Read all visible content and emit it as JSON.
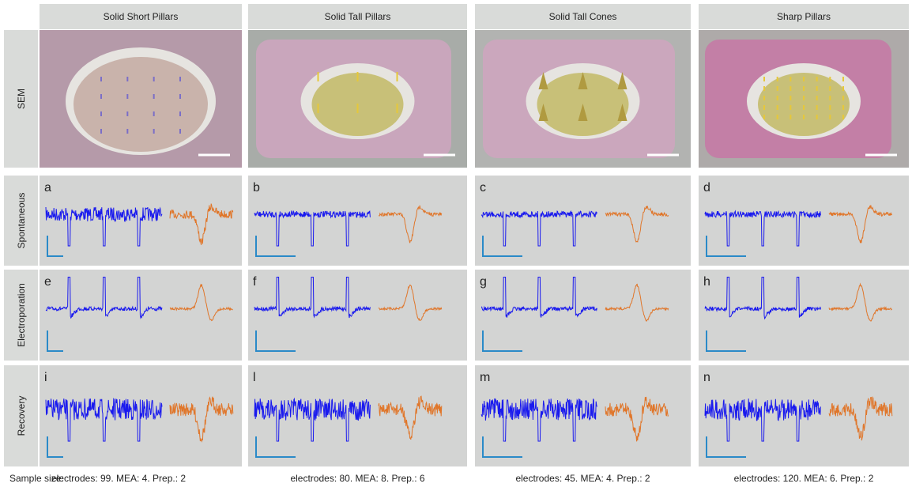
{
  "columns": [
    "Solid Short Pillars",
    "Solid Tall Pillars",
    "Solid Tall Cones",
    "Sharp Pillars"
  ],
  "rows": [
    "SEM",
    "Spontaneous",
    "Electroporation",
    "Recovery"
  ],
  "panel_letters": [
    [
      "a",
      "b",
      "c",
      "d"
    ],
    [
      "e",
      "f",
      "g",
      "h"
    ],
    [
      "i",
      "l",
      "m",
      "n"
    ]
  ],
  "footer": {
    "label": "Sample size:",
    "columns": [
      "electrodes: 99. MEA: 4. Prep.: 2",
      "electrodes: 80. MEA: 8. Prep.: 6",
      "electrodes: 45. MEA: 4. Prep.: 2",
      "electrodes: 120. MEA: 6. Prep.: 2"
    ]
  }
}
